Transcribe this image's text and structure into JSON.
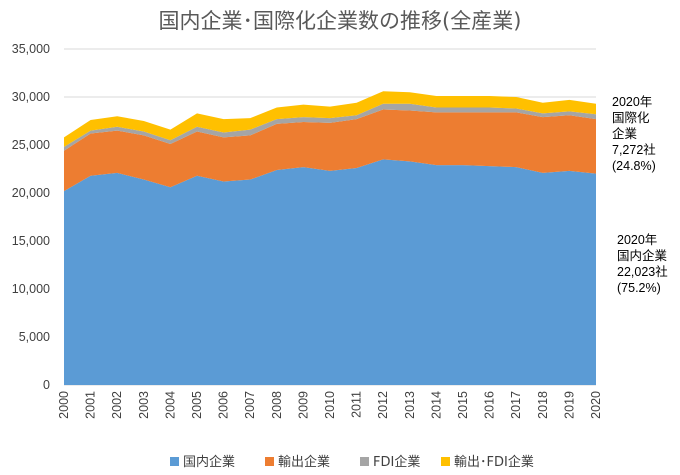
{
  "chart_data": {
    "type": "area",
    "stacked": true,
    "title": "国内企業･国際化企業数の推移(全産業)",
    "xlabel": "",
    "ylabel": "",
    "ylim": [
      0,
      35000
    ],
    "yticks": [
      "0",
      "5,000",
      "10,000",
      "15,000",
      "20,000",
      "25,000",
      "30,000",
      "35,000"
    ],
    "grid": true,
    "legend": "bottom",
    "categories": [
      "2000",
      "2001",
      "2002",
      "2003",
      "2004",
      "2005",
      "2006",
      "2007",
      "2008",
      "2009",
      "2010",
      "2011",
      "2012",
      "2013",
      "2014",
      "2015",
      "2016",
      "2017",
      "2018",
      "2019",
      "2020"
    ],
    "series": [
      {
        "name": "国内企業",
        "color": "#5B9BD5",
        "values": [
          20200,
          21800,
          22100,
          21400,
          20600,
          21800,
          21200,
          21400,
          22400,
          22700,
          22300,
          22600,
          23500,
          23300,
          22900,
          22900,
          22800,
          22700,
          22100,
          22300,
          22023
        ]
      },
      {
        "name": "輸出企業",
        "color": "#ED7D31",
        "values": [
          4200,
          4400,
          4400,
          4600,
          4500,
          4600,
          4600,
          4600,
          4800,
          4700,
          5000,
          5100,
          5200,
          5300,
          5500,
          5500,
          5600,
          5700,
          5800,
          5800,
          5677
        ]
      },
      {
        "name": "FDI企業",
        "color": "#A5A5A5",
        "values": [
          400,
          300,
          400,
          400,
          400,
          500,
          500,
          600,
          500,
          500,
          500,
          400,
          600,
          700,
          500,
          500,
          500,
          400,
          400,
          400,
          500
        ]
      },
      {
        "name": "輸出･FDI企業",
        "color": "#FFC000",
        "values": [
          1000,
          1100,
          1100,
          1100,
          1100,
          1400,
          1400,
          1200,
          1200,
          1300,
          1200,
          1300,
          1300,
          1200,
          1200,
          1200,
          1200,
          1200,
          1100,
          1200,
          1095
        ]
      }
    ],
    "annotations": [
      {
        "lines": [
          "2020年",
          "国際化",
          "企業",
          "7,272社",
          "(24.8%)"
        ]
      },
      {
        "lines": [
          "2020年",
          "国内企業",
          "22,023社",
          "(75.2%)"
        ]
      }
    ]
  }
}
